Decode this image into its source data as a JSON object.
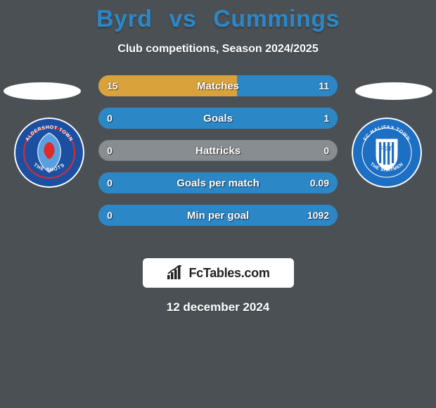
{
  "colors": {
    "background": "#4a5054",
    "title": "#2c87c7",
    "subtitle": "#ffffff",
    "bar_base": "#888d91",
    "fill_left": "#d9a23a",
    "fill_right": "#2c87c7",
    "branding_bg": "#ffffff",
    "branding_text": "#222222",
    "date_text": "#ffffff"
  },
  "title": {
    "player1": "Byrd",
    "vs": "vs",
    "player2": "Cummings"
  },
  "subtitle": "Club competitions, Season 2024/2025",
  "crests": {
    "left": {
      "name": "aldershot-town-crest",
      "outer": "#1d4fa0",
      "inner": "#1d4fa0",
      "accent": "#dd2b2b",
      "text_top": "ALDERSHOT TOWN",
      "text_bottom": "THE SHOTS"
    },
    "right": {
      "name": "fc-halifax-town-crest",
      "outer": "#1d6fc4",
      "inner": "#ffffff",
      "accent": "#1d6fc4",
      "text_top": "FC HALIFAX TOWN",
      "text_bottom": "THE SHAYMEN"
    }
  },
  "bars": [
    {
      "label": "Matches",
      "left_val": "15",
      "right_val": "11",
      "left_pct": 58,
      "right_pct": 42
    },
    {
      "label": "Goals",
      "left_val": "0",
      "right_val": "1",
      "left_pct": 0,
      "right_pct": 100
    },
    {
      "label": "Hattricks",
      "left_val": "0",
      "right_val": "0",
      "left_pct": 0,
      "right_pct": 0
    },
    {
      "label": "Goals per match",
      "left_val": "0",
      "right_val": "0.09",
      "left_pct": 0,
      "right_pct": 100
    },
    {
      "label": "Min per goal",
      "left_val": "0",
      "right_val": "1092",
      "left_pct": 0,
      "right_pct": 100
    }
  ],
  "branding": "FcTables.com",
  "date": "12 december 2024"
}
